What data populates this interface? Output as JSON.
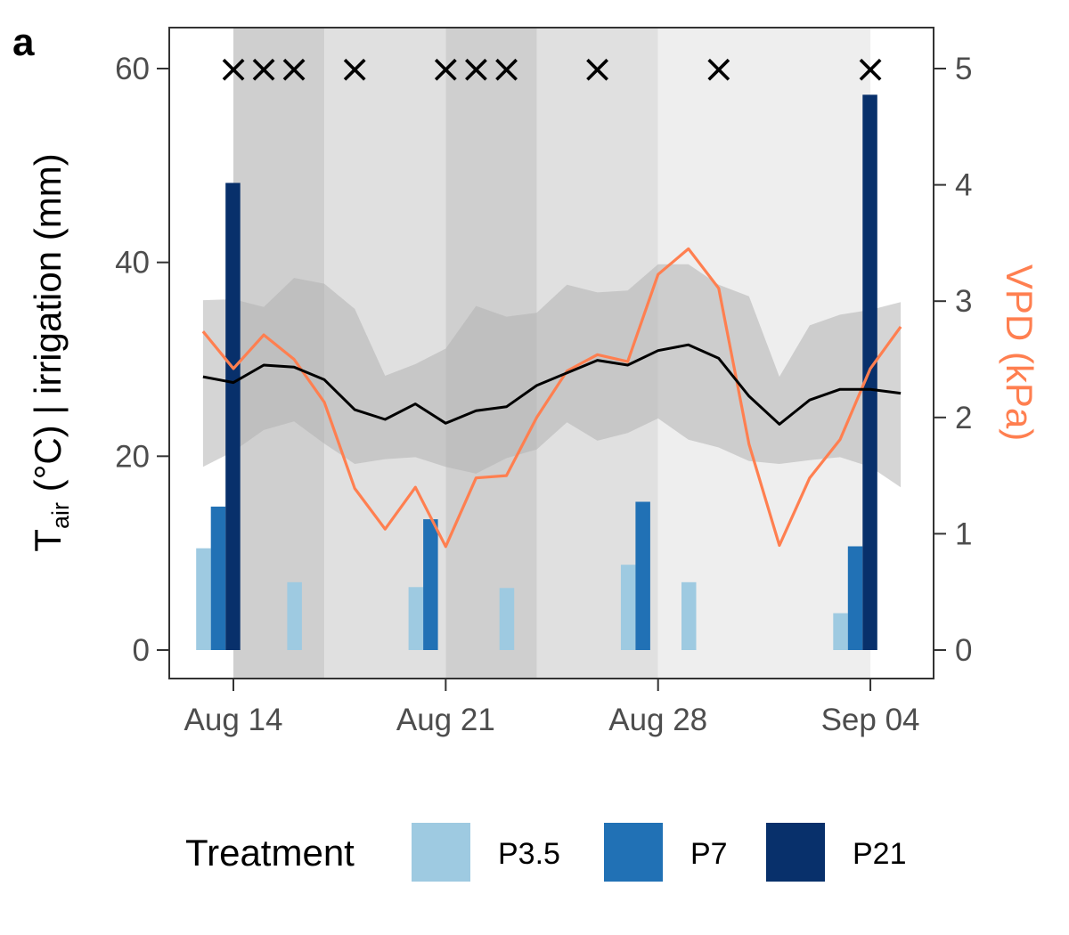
{
  "panel_label": "a",
  "chart_data": {
    "type": "bar+line",
    "x_ticks": [
      "Aug 14",
      "Aug 21",
      "Aug 28",
      "Sep 04"
    ],
    "ylabel_left_main": "T",
    "ylabel_left_sub": "air",
    "ylabel_left_rest": " (°C) | irrigation (mm)",
    "ylabel_right": "VPD (kPa)",
    "ylim_left": [
      0,
      60
    ],
    "ylim_right": [
      0,
      5
    ],
    "y_ticks_left": [
      "0",
      "20",
      "40",
      "60"
    ],
    "y_ticks_right": [
      "0",
      "1",
      "2",
      "3",
      "4",
      "5"
    ],
    "colors": {
      "P3.5": "#9ecae1",
      "P7": "#2171b5",
      "P21": "#08306b",
      "vpd": "#ff7f50",
      "tair": "#000000",
      "ribbon": "#b3b3b3"
    },
    "background_bands": [
      {
        "from": "Aug 14",
        "to": "Aug 17",
        "shade": "#cfcfcf"
      },
      {
        "from": "Aug 17",
        "to": "Aug 21",
        "shade": "#e0e0e0"
      },
      {
        "from": "Aug 21",
        "to": "Aug 24",
        "shade": "#cfcfcf"
      },
      {
        "from": "Aug 24",
        "to": "Aug 28",
        "shade": "#e0e0e0"
      },
      {
        "from": "Aug 28",
        "to": "Sep 04",
        "shade": "#eeeeee"
      }
    ],
    "irrigation_marks": [
      "Aug 14",
      "Aug 15",
      "Aug 16",
      "Aug 18",
      "Aug 21",
      "Aug 22",
      "Aug 23",
      "Aug 26",
      "Aug 30",
      "Sep 04"
    ],
    "irrigation_mark_symbol": "×",
    "bars": {
      "P3.5": [
        {
          "date": "Aug 13",
          "value": 10.5
        },
        {
          "date": "Aug 16",
          "value": 7.0
        },
        {
          "date": "Aug 20",
          "value": 6.5
        },
        {
          "date": "Aug 23",
          "value": 6.4
        },
        {
          "date": "Aug 27",
          "value": 8.8
        },
        {
          "date": "Aug 29",
          "value": 7.0
        },
        {
          "date": "Sep 03",
          "value": 3.8
        }
      ],
      "P7": [
        {
          "date": "Aug 13",
          "value": 14.8
        },
        {
          "date": "Aug 20",
          "value": 13.5
        },
        {
          "date": "Aug 27",
          "value": 15.3
        },
        {
          "date": "Sep 03",
          "value": 10.7
        }
      ],
      "P21": [
        {
          "date": "Aug 13",
          "value": 48.2
        },
        {
          "date": "Sep 03",
          "value": 57.3
        }
      ]
    },
    "tair_mean": [
      {
        "date": "Aug 13",
        "value": 28.2
      },
      {
        "date": "Aug 14",
        "value": 27.6
      },
      {
        "date": "Aug 15",
        "value": 29.4
      },
      {
        "date": "Aug 16",
        "value": 29.2
      },
      {
        "date": "Aug 17",
        "value": 27.9
      },
      {
        "date": "Aug 18",
        "value": 24.8
      },
      {
        "date": "Aug 19",
        "value": 23.8
      },
      {
        "date": "Aug 20",
        "value": 25.4
      },
      {
        "date": "Aug 21",
        "value": 23.4
      },
      {
        "date": "Aug 22",
        "value": 24.7
      },
      {
        "date": "Aug 23",
        "value": 25.1
      },
      {
        "date": "Aug 24",
        "value": 27.3
      },
      {
        "date": "Aug 25",
        "value": 28.6
      },
      {
        "date": "Aug 26",
        "value": 29.9
      },
      {
        "date": "Aug 27",
        "value": 29.4
      },
      {
        "date": "Aug 28",
        "value": 30.9
      },
      {
        "date": "Aug 29",
        "value": 31.5
      },
      {
        "date": "Aug 30",
        "value": 30.1
      },
      {
        "date": "Aug 31",
        "value": 26.2
      },
      {
        "date": "Sep 01",
        "value": 23.3
      },
      {
        "date": "Sep 02",
        "value": 25.8
      },
      {
        "date": "Sep 03",
        "value": 26.9
      },
      {
        "date": "Sep 04",
        "value": 26.9
      },
      {
        "date": "Sep 05",
        "value": 26.5
      }
    ],
    "tair_min": [
      18.9,
      20.5,
      22.7,
      23.6,
      21.3,
      19.2,
      19.7,
      19.9,
      18.9,
      18.2,
      19.8,
      20.7,
      23.5,
      21.6,
      22.4,
      23.9,
      21.7,
      20.9,
      19.5,
      19.2,
      19.6,
      19.9,
      18.9,
      16.8
    ],
    "tair_max": [
      36.1,
      36.2,
      35.4,
      38.4,
      37.8,
      35.2,
      28.3,
      29.5,
      31.1,
      35.5,
      34.4,
      34.8,
      37.7,
      36.9,
      37.1,
      39.8,
      39.8,
      37.7,
      36.5,
      28.2,
      33.5,
      34.6,
      35.1,
      35.9
    ],
    "vpd": [
      {
        "date": "Aug 13",
        "value": 2.74
      },
      {
        "date": "Aug 14",
        "value": 2.42
      },
      {
        "date": "Aug 15",
        "value": 2.71
      },
      {
        "date": "Aug 16",
        "value": 2.5
      },
      {
        "date": "Aug 17",
        "value": 2.13
      },
      {
        "date": "Aug 18",
        "value": 1.39
      },
      {
        "date": "Aug 19",
        "value": 1.04
      },
      {
        "date": "Aug 20",
        "value": 1.4
      },
      {
        "date": "Aug 21",
        "value": 0.89
      },
      {
        "date": "Aug 22",
        "value": 1.48
      },
      {
        "date": "Aug 23",
        "value": 1.5
      },
      {
        "date": "Aug 24",
        "value": 2.0
      },
      {
        "date": "Aug 25",
        "value": 2.4
      },
      {
        "date": "Aug 26",
        "value": 2.54
      },
      {
        "date": "Aug 27",
        "value": 2.48
      },
      {
        "date": "Aug 28",
        "value": 3.23
      },
      {
        "date": "Aug 29",
        "value": 3.45
      },
      {
        "date": "Aug 30",
        "value": 3.11
      },
      {
        "date": "Aug 31",
        "value": 1.77
      },
      {
        "date": "Sep 01",
        "value": 0.9
      },
      {
        "date": "Sep 02",
        "value": 1.48
      },
      {
        "date": "Sep 03",
        "value": 1.81
      },
      {
        "date": "Sep 04",
        "value": 2.42
      },
      {
        "date": "Sep 05",
        "value": 2.78
      }
    ]
  },
  "legend": {
    "title": "Treatment",
    "position": "bottom",
    "items": [
      {
        "label": "P3.5",
        "color": "#9ecae1"
      },
      {
        "label": "P7",
        "color": "#2171b5"
      },
      {
        "label": "P21",
        "color": "#08306b"
      }
    ]
  }
}
